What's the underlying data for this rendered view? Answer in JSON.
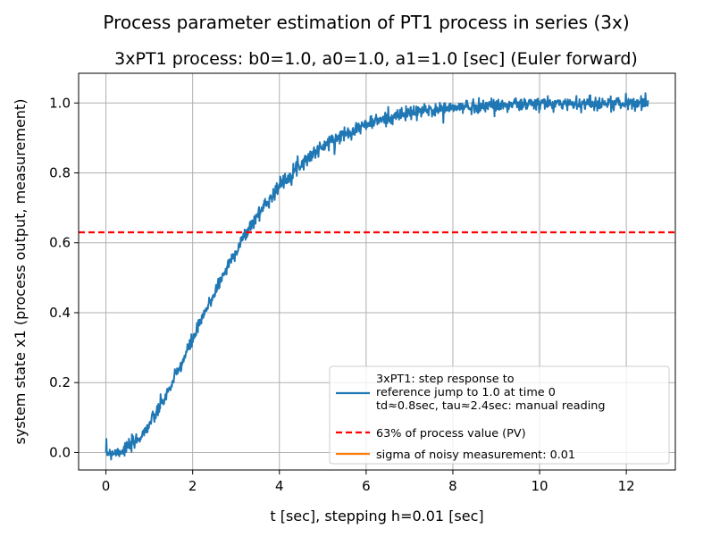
{
  "chart_data": {
    "type": "line",
    "suptitle": "Process parameter estimation of PT1 process in series (3x)",
    "title": "3xPT1 process: b0=1.0, a0=1.0, a1=1.0 [sec] (Euler forward)",
    "xlabel": "t [sec], stepping h=0.01 [sec]",
    "ylabel": "system state x1 (process output, measurement)",
    "xlim": [
      -0.63,
      13.13
    ],
    "ylim": [
      -0.05,
      1.085
    ],
    "xticks": [
      0,
      2,
      4,
      6,
      8,
      10,
      12
    ],
    "yticks": [
      0.0,
      0.2,
      0.4,
      0.6,
      0.8,
      1.0
    ],
    "xtick_labels": [
      "0",
      "2",
      "4",
      "6",
      "8",
      "10",
      "12"
    ],
    "ytick_labels": [
      "0.0",
      "0.2",
      "0.4",
      "0.6",
      "0.8",
      "1.0"
    ],
    "grid": true,
    "legend_placement": "lower right",
    "series": [
      {
        "name": "3xPT1: step response to\nreference jump to 1.0 at time 0\ntd≈0.8sec, tau≈2.4sec: manual reading",
        "color": "#1f77b4",
        "style": "solid",
        "model": {
          "gain": 1.0,
          "tau": 1.0,
          "order": 3,
          "noise_sigma": 0.01
        },
        "x_range": [
          0,
          12.5
        ],
        "step": 0.01
      },
      {
        "name": "63% of process value (PV)",
        "color": "#ff0000",
        "style": "dashed",
        "y": 0.63
      },
      {
        "name": "sigma of noisy measurement: 0.01",
        "color": "#ff7f0e",
        "style": "solid",
        "legend_only": true
      }
    ]
  }
}
